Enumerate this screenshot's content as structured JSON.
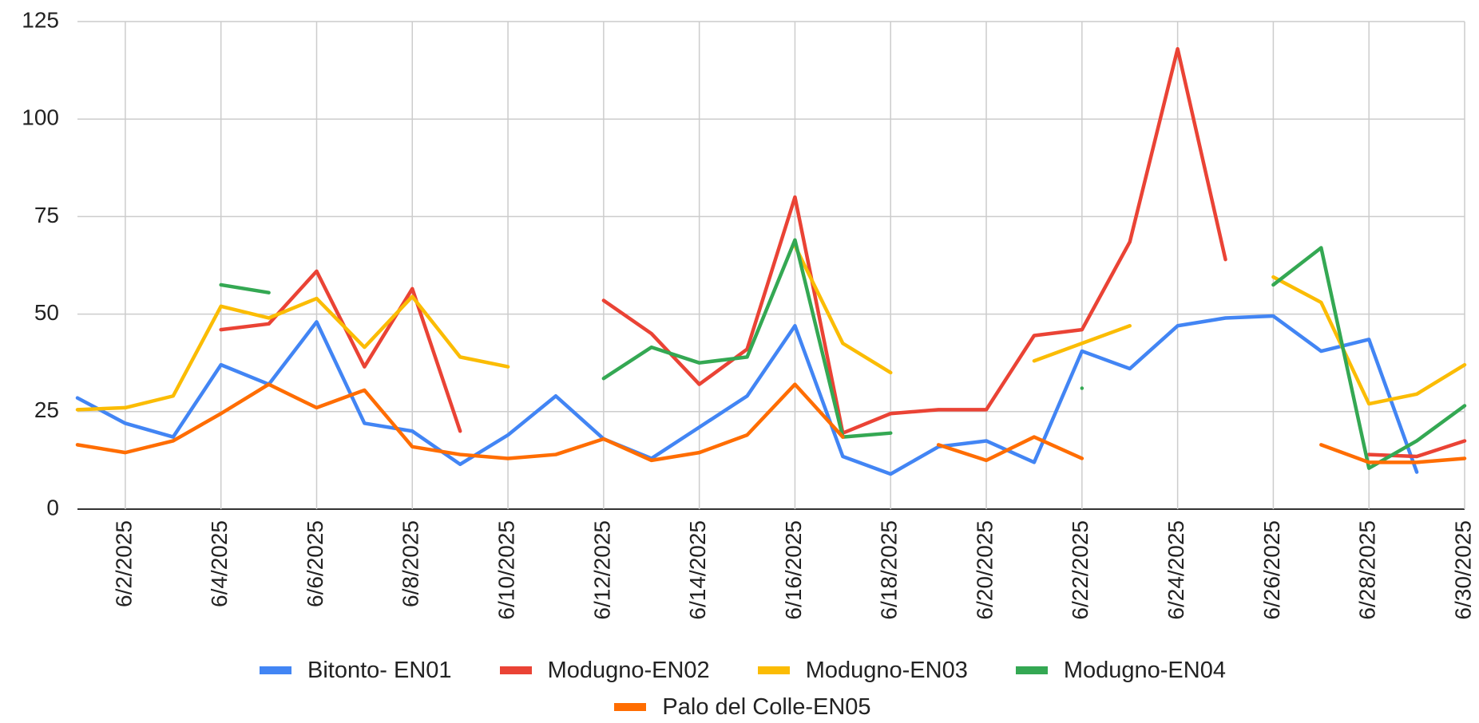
{
  "chart_data": {
    "type": "line",
    "categories": [
      null,
      "6/2/2025",
      null,
      "6/4/2025",
      null,
      "6/6/2025",
      null,
      "6/8/2025",
      null,
      "6/10/2025",
      null,
      "6/12/2025",
      null,
      "6/14/2025",
      null,
      "6/16/2025",
      null,
      "6/18/2025",
      null,
      "6/20/2025",
      null,
      "6/22/2025",
      null,
      "6/24/2025",
      null,
      "6/26/2025",
      null,
      "6/28/2025",
      null,
      "6/30/2025"
    ],
    "ylim": [
      0,
      125
    ],
    "yticks": [
      0,
      25,
      50,
      75,
      100,
      125
    ],
    "grid": true,
    "series": [
      {
        "name": "Bitonto- EN01",
        "color": "#4285f4",
        "values": [
          28.5,
          22,
          18.5,
          37,
          32,
          48,
          22,
          20,
          11.5,
          19,
          29,
          18,
          13,
          21,
          29,
          47,
          13.5,
          9,
          16,
          17.5,
          12,
          40.5,
          36,
          47,
          49,
          49.5,
          40.5,
          43.5,
          9.5,
          null
        ]
      },
      {
        "name": "Modugno-EN02",
        "color": "#ea4335",
        "values": [
          null,
          null,
          null,
          46,
          47.5,
          61,
          36.5,
          56.5,
          20,
          null,
          null,
          53.5,
          45,
          32,
          41,
          80,
          19.5,
          24.5,
          25.5,
          25.5,
          44.5,
          46,
          68.5,
          118,
          64,
          null,
          null,
          14,
          13.5,
          17.5
        ]
      },
      {
        "name": "Modugno-EN03",
        "color": "#fbbc04",
        "values": [
          25.5,
          26,
          29,
          52,
          49,
          54,
          41.5,
          54.5,
          39,
          36.5,
          null,
          null,
          null,
          null,
          null,
          67.5,
          42.5,
          35,
          null,
          null,
          38,
          42.5,
          47,
          null,
          null,
          59.5,
          53,
          27,
          29.5,
          37
        ]
      },
      {
        "name": "Modugno-EN04",
        "color": "#34a853",
        "values": [
          null,
          null,
          null,
          57.5,
          55.5,
          null,
          null,
          null,
          null,
          null,
          null,
          33.5,
          41.5,
          37.5,
          39,
          69,
          18.5,
          19.5,
          null,
          null,
          null,
          31,
          null,
          null,
          null,
          57.5,
          67,
          10.5,
          17.5,
          26.5
        ]
      },
      {
        "name": "Palo del Colle-EN05",
        "color": "#ff6d01",
        "values": [
          16.5,
          14.5,
          17.5,
          24.5,
          32,
          26,
          30.5,
          16,
          14,
          13,
          14,
          18,
          12.5,
          14.5,
          19,
          32,
          18.5,
          null,
          16.5,
          12.5,
          18.5,
          13,
          null,
          null,
          null,
          null,
          16.5,
          12,
          12,
          13
        ]
      }
    ]
  }
}
